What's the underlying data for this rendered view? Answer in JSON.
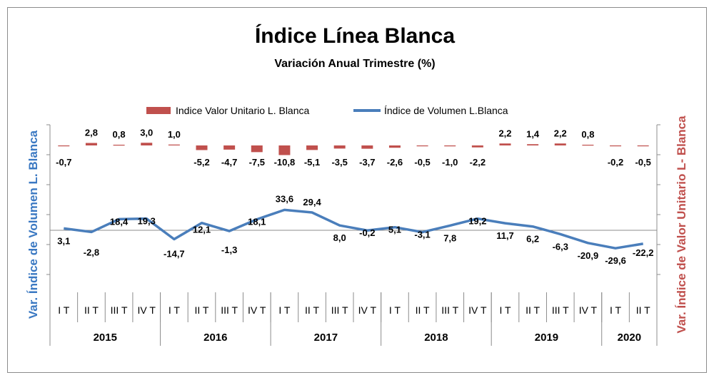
{
  "chart_data": {
    "type": "bar+line",
    "title": "Índice Línea Blanca",
    "subtitle": "Variación Anual Trimestre  (%)",
    "categories": [
      "I T",
      "II T",
      "III T",
      "IV T",
      "I T",
      "II T",
      "III T",
      "IV T",
      "I T",
      "II T",
      "III T",
      "IV T",
      "I T",
      "II T",
      "III T",
      "IV T",
      "I T",
      "II T",
      "III T",
      "IV T",
      "I T",
      "II T"
    ],
    "years": [
      {
        "label": "2015",
        "quarters": 4
      },
      {
        "label": "2016",
        "quarters": 4
      },
      {
        "label": "2017",
        "quarters": 4
      },
      {
        "label": "2018",
        "quarters": 4
      },
      {
        "label": "2019",
        "quarters": 4
      },
      {
        "label": "2020",
        "quarters": 2
      }
    ],
    "series": [
      {
        "name": "Indice Valor Unitario L. Blanca",
        "kind": "bar",
        "axis": "right",
        "color": "#c0504d",
        "values": [
          -0.7,
          2.8,
          0.8,
          3.0,
          1.0,
          -5.2,
          -4.7,
          -7.5,
          -10.8,
          -5.1,
          -3.5,
          -3.7,
          -2.6,
          -0.5,
          -1.0,
          -2.2,
          2.2,
          1.4,
          2.2,
          0.8,
          -0.2,
          -0.5
        ],
        "labels": [
          "-0,7",
          "2,8",
          "0,8",
          "3,0",
          "1,0",
          "-5,2",
          "-4,7",
          "-7,5",
          "-10,8",
          "-5,1",
          "-3,5",
          "-3,7",
          "-2,6",
          "-0,5",
          "-1,0",
          "-2,2",
          "2,2",
          "1,4",
          "2,2",
          "0,8",
          "-0,2",
          "-0,5"
        ]
      },
      {
        "name": "Índice de Volumen L.Blanca",
        "kind": "line",
        "axis": "left",
        "color": "#4a7ebb",
        "values": [
          3.1,
          -2.8,
          18.4,
          19.3,
          -14.7,
          12.1,
          -1.3,
          18.1,
          33.6,
          29.4,
          8.0,
          -0.2,
          5.1,
          -3.1,
          7.8,
          19.2,
          11.7,
          6.2,
          -6.3,
          -20.9,
          -29.6,
          -22.2
        ],
        "labels": [
          "3,1",
          "-2,8",
          "18,4",
          "19,3",
          "-14,7",
          "12,1",
          "-1,3",
          "18,1",
          "33,6",
          "29,4",
          "8,0",
          "-0,2",
          "5,1",
          "-3,1",
          "7,8",
          "19,2",
          "11,7",
          "6,2",
          "-6,3",
          "-20,9",
          "-29,6",
          "-22,2"
        ]
      }
    ],
    "ylabel_left": "Var. Índice de Volumen L. Blanca",
    "ylabel_right": "Var. Índice de Valor Unitario L- Blanca",
    "legend_position": "top",
    "grid": false
  }
}
